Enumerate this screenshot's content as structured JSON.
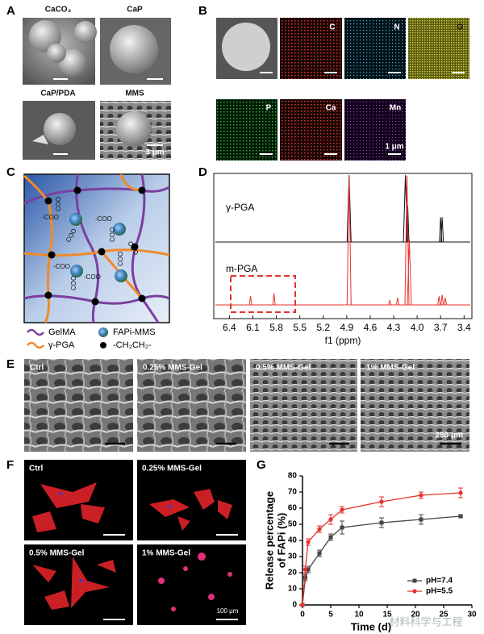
{
  "figure": {
    "A": {
      "letter": "A",
      "labels": [
        "CaCO₃",
        "CaP",
        "CaP/PDA",
        "MMS"
      ],
      "scale_bar": "3 μm"
    },
    "B": {
      "letter": "B",
      "labels": [
        "C",
        "N",
        "O",
        "P",
        "Ca",
        "Mn"
      ],
      "scale_bar": "1 μm"
    },
    "C": {
      "letter": "C",
      "group_labels": [
        "-COO",
        "-COO",
        "-COO",
        "-COO",
        "COO",
        "COO",
        "COO",
        "COO",
        "COO",
        "COO"
      ],
      "legend": [
        "GelMA",
        "γ-PGA",
        "FAPi-MMS",
        "-CH₂CH₂-"
      ]
    },
    "D": {
      "letter": "D"
    },
    "E": {
      "letter": "E",
      "labels": [
        "Ctrl",
        "0.25% MMS-Gel",
        "0.5% MMS-Gel",
        "1% MMS-Gel"
      ],
      "scale_bar": "250 μm"
    },
    "F": {
      "letter": "F",
      "labels": [
        "Ctrl",
        "0.25% MMS-Gel",
        "0.5% MMS-Gel",
        "1% MMS-Gel"
      ],
      "scale_bar": "100 μm"
    },
    "G": {
      "letter": "G"
    },
    "watermark": "材料科学与工程"
  },
  "chart_data": [
    {
      "type": "spectrum",
      "x_label": "f1 (ppm)",
      "xlim": [
        6.6,
        3.3
      ],
      "xticks": [
        6.4,
        6.1,
        5.8,
        5.5,
        5.2,
        4.9,
        4.6,
        4.3,
        {
          "value": 4,
          "label": "4.0"
        },
        3.7,
        3.4
      ],
      "series": [
        {
          "name": "γ-PGA",
          "color": "#111111",
          "x": [
            4.87,
            4.15,
            4.12,
            3.7,
            3.68
          ],
          "values": [
            0.46,
            0.46,
            0.25,
            0.17,
            0.17
          ]
        },
        {
          "name": "m-PGA",
          "color": "#e5322d",
          "x": [
            6.13,
            5.83,
            4.87,
            4.35,
            4.25,
            4.13,
            4.1,
            3.72,
            3.68,
            3.64
          ],
          "values": [
            0.06,
            0.08,
            0.89,
            0.03,
            0.05,
            0.89,
            0.45,
            0.06,
            0.07,
            0.05
          ]
        }
      ]
    },
    {
      "type": "line",
      "x_label": "Time (d)",
      "y_label": [
        "Release percentage",
        "of FAPi (%)"
      ],
      "xlim": [
        0,
        30
      ],
      "xticks": [
        0,
        5,
        10,
        15,
        20,
        25,
        30
      ],
      "ylim": [
        0,
        80
      ],
      "yticks": [
        0,
        10,
        20,
        30,
        40,
        50,
        60,
        70,
        80
      ],
      "legend": "lower right",
      "x": [
        0,
        0.5,
        1,
        3,
        5,
        7,
        14,
        21,
        28
      ],
      "series": [
        {
          "name": "pH=7.4",
          "color": "#444444",
          "marker": "square",
          "values": [
            0,
            17,
            22,
            32,
            42,
            48,
            51,
            53,
            55
          ],
          "errors": [
            0,
            2,
            2,
            2,
            2,
            4,
            3,
            3,
            1
          ]
        },
        {
          "name": "pH=5.5",
          "color": "#e5322d",
          "marker": "circle",
          "values": [
            0,
            22,
            39,
            47,
            53,
            59,
            64,
            68,
            69.5
          ],
          "errors": [
            0,
            2,
            2,
            2,
            3,
            2,
            3,
            2,
            3
          ]
        }
      ]
    }
  ]
}
